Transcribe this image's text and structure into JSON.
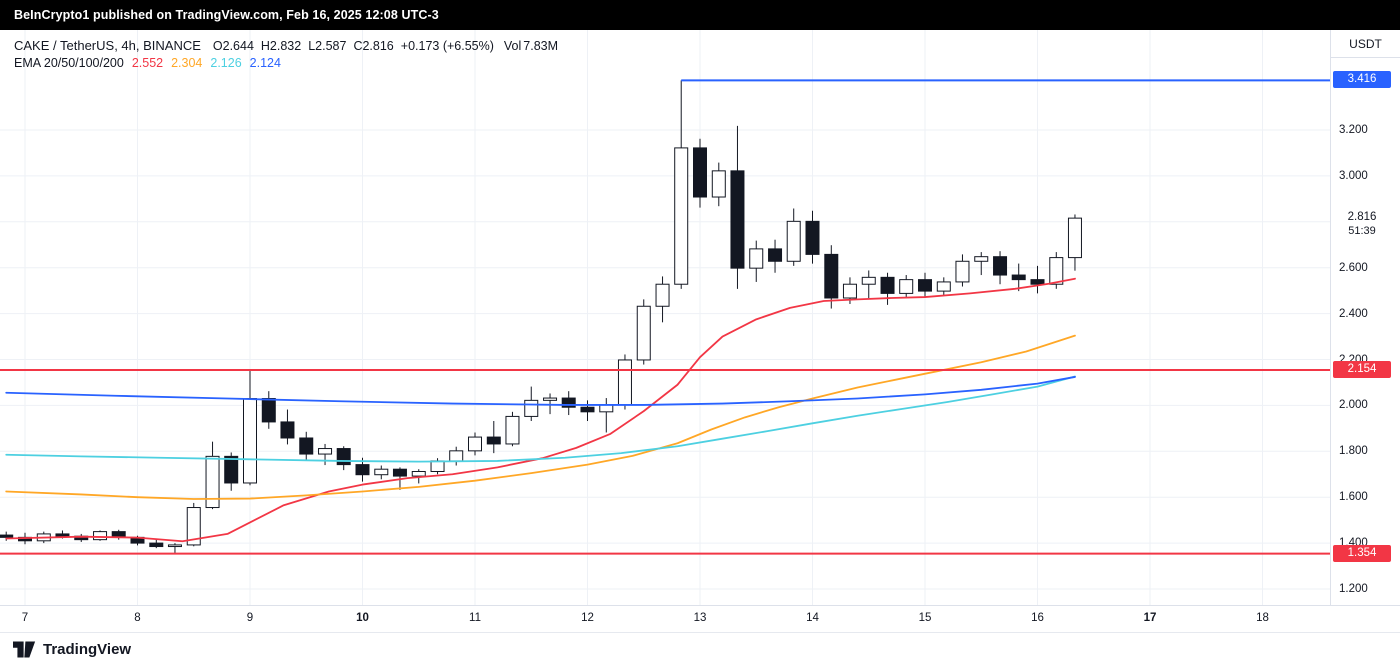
{
  "top_bar": {
    "attribution": "BeInCrypto1 published on TradingView.com, Feb 16, 2025 12:08 UTC-3"
  },
  "header": {
    "symbol": "CAKE / TetherUS, 4h, BINANCE",
    "ohlc": [
      "O2.644",
      "H2.832",
      "L2.587",
      "C2.816"
    ],
    "change": "+0.173 (+6.55%)",
    "volume_label": "Vol",
    "volume": "7.83M",
    "indicator": {
      "name": "EMA 20/50/100/200",
      "values": [
        {
          "text": "2.552",
          "color": "#f23645"
        },
        {
          "text": "2.304",
          "color": "#ffa726"
        },
        {
          "text": "2.126",
          "color": "#4dd0e1"
        },
        {
          "text": "2.124",
          "color": "#2962ff"
        }
      ]
    }
  },
  "price_axis": {
    "currency": "USDT",
    "tick_labels": [
      "3.200",
      "3.000",
      "2.600",
      "2.400",
      "2.200",
      "2.000",
      "1.800",
      "1.600",
      "1.400",
      "1.200"
    ],
    "last_price": {
      "display": "2.816",
      "value": 2.816,
      "countdown": "51:39"
    },
    "level_badges": [
      {
        "display": "3.416",
        "value": 3.416,
        "color": "#2962ff"
      },
      {
        "display": "2.154",
        "value": 2.154,
        "color": "#f23645"
      },
      {
        "display": "1.354",
        "value": 1.354,
        "color": "#f23645"
      }
    ]
  },
  "time_axis": {
    "labels": [
      {
        "text": "7",
        "t": 7,
        "bold": false
      },
      {
        "text": "8",
        "t": 8,
        "bold": false
      },
      {
        "text": "9",
        "t": 9,
        "bold": false
      },
      {
        "text": "10",
        "t": 10,
        "bold": true
      },
      {
        "text": "11",
        "t": 11,
        "bold": false
      },
      {
        "text": "12",
        "t": 12,
        "bold": false
      },
      {
        "text": "13",
        "t": 13,
        "bold": false
      },
      {
        "text": "14",
        "t": 14,
        "bold": false
      },
      {
        "text": "15",
        "t": 15,
        "bold": false
      },
      {
        "text": "16",
        "t": 16,
        "bold": false
      },
      {
        "text": "17",
        "t": 17,
        "bold": true
      },
      {
        "text": "18",
        "t": 18,
        "bold": false
      }
    ]
  },
  "footer": {
    "brand": "TradingView"
  },
  "colors": {
    "grid": "#eef1f6",
    "candle_up": "#ffffff",
    "candle_down": "#131722",
    "candle_border": "#131722",
    "axis_text": "#131722",
    "level_red": "#f23645",
    "level_blue": "#2962ff"
  },
  "chart_data": {
    "type": "candlestick",
    "title": "CAKE / TetherUS, 4h, BINANCE",
    "ylabel": "USDT",
    "y_ticks": [
      1.2,
      1.4,
      1.6,
      1.8,
      2.0,
      2.2,
      2.4,
      2.6,
      2.8,
      3.0,
      3.2
    ],
    "x_ticks_days": [
      7,
      8,
      9,
      10,
      11,
      12,
      13,
      14,
      15,
      16,
      17,
      18
    ],
    "grid": true,
    "last_price": 2.816,
    "candles_tohlc": [
      [
        6.833,
        1.435,
        1.45,
        1.41,
        1.425
      ],
      [
        7.0,
        1.425,
        1.445,
        1.395,
        1.41
      ],
      [
        7.167,
        1.41,
        1.45,
        1.4,
        1.44
      ],
      [
        7.333,
        1.44,
        1.455,
        1.42,
        1.43
      ],
      [
        7.5,
        1.43,
        1.44,
        1.405,
        1.415
      ],
      [
        7.667,
        1.415,
        1.455,
        1.41,
        1.45
      ],
      [
        7.833,
        1.45,
        1.458,
        1.415,
        1.425
      ],
      [
        8.0,
        1.425,
        1.432,
        1.39,
        1.4
      ],
      [
        8.167,
        1.4,
        1.415,
        1.378,
        1.385
      ],
      [
        8.333,
        1.385,
        1.4,
        1.354,
        1.392
      ],
      [
        8.5,
        1.392,
        1.575,
        1.386,
        1.555
      ],
      [
        8.667,
        1.555,
        1.842,
        1.548,
        1.778
      ],
      [
        8.833,
        1.778,
        1.795,
        1.628,
        1.662
      ],
      [
        9.0,
        1.662,
        2.154,
        1.652,
        2.03
      ],
      [
        9.167,
        2.03,
        2.062,
        1.898,
        1.928
      ],
      [
        9.333,
        1.928,
        1.982,
        1.83,
        1.858
      ],
      [
        9.5,
        1.858,
        1.885,
        1.758,
        1.788
      ],
      [
        9.667,
        1.788,
        1.832,
        1.74,
        1.812
      ],
      [
        9.833,
        1.812,
        1.822,
        1.718,
        1.742
      ],
      [
        10.0,
        1.742,
        1.772,
        1.668,
        1.698
      ],
      [
        10.167,
        1.698,
        1.738,
        1.678,
        1.722
      ],
      [
        10.333,
        1.722,
        1.73,
        1.632,
        1.692
      ],
      [
        10.5,
        1.692,
        1.722,
        1.66,
        1.712
      ],
      [
        10.667,
        1.712,
        1.77,
        1.7,
        1.758
      ],
      [
        10.833,
        1.758,
        1.82,
        1.738,
        1.802
      ],
      [
        11.0,
        1.802,
        1.882,
        1.782,
        1.862
      ],
      [
        11.167,
        1.862,
        1.932,
        1.792,
        1.832
      ],
      [
        11.333,
        1.832,
        1.972,
        1.822,
        1.952
      ],
      [
        11.5,
        1.952,
        2.082,
        1.932,
        2.022
      ],
      [
        11.667,
        2.022,
        2.052,
        1.962,
        2.032
      ],
      [
        11.833,
        2.032,
        2.062,
        1.958,
        1.992
      ],
      [
        12.0,
        1.992,
        2.022,
        1.932,
        1.972
      ],
      [
        12.167,
        1.972,
        2.032,
        1.882,
        2.002
      ],
      [
        12.333,
        2.002,
        2.222,
        1.982,
        2.198
      ],
      [
        12.5,
        2.198,
        2.462,
        2.178,
        2.432
      ],
      [
        12.667,
        2.432,
        2.562,
        2.362,
        2.528
      ],
      [
        12.833,
        2.528,
        3.416,
        2.508,
        3.122
      ],
      [
        13.0,
        3.122,
        3.162,
        2.862,
        2.908
      ],
      [
        13.167,
        2.908,
        3.058,
        2.868,
        3.022
      ],
      [
        13.333,
        3.022,
        3.218,
        2.508,
        2.598
      ],
      [
        13.5,
        2.598,
        2.718,
        2.538,
        2.682
      ],
      [
        13.667,
        2.682,
        2.722,
        2.578,
        2.628
      ],
      [
        13.833,
        2.628,
        2.858,
        2.608,
        2.802
      ],
      [
        14.0,
        2.802,
        2.848,
        2.618,
        2.658
      ],
      [
        14.167,
        2.658,
        2.698,
        2.422,
        2.468
      ],
      [
        14.333,
        2.468,
        2.558,
        2.442,
        2.528
      ],
      [
        14.5,
        2.528,
        2.588,
        2.468,
        2.558
      ],
      [
        14.667,
        2.558,
        2.578,
        2.438,
        2.488
      ],
      [
        14.833,
        2.488,
        2.568,
        2.468,
        2.548
      ],
      [
        15.0,
        2.548,
        2.578,
        2.468,
        2.498
      ],
      [
        15.167,
        2.498,
        2.558,
        2.478,
        2.538
      ],
      [
        15.333,
        2.538,
        2.658,
        2.518,
        2.628
      ],
      [
        15.5,
        2.628,
        2.668,
        2.568,
        2.648
      ],
      [
        15.667,
        2.648,
        2.672,
        2.528,
        2.568
      ],
      [
        15.833,
        2.568,
        2.618,
        2.498,
        2.548
      ],
      [
        16.0,
        2.548,
        2.608,
        2.488,
        2.528
      ],
      [
        16.167,
        2.528,
        2.668,
        2.508,
        2.644
      ],
      [
        16.333,
        2.644,
        2.832,
        2.587,
        2.816
      ]
    ],
    "emas": [
      {
        "name": "EMA 20",
        "color": "#f23645",
        "current": 2.552,
        "points": [
          [
            6.833,
            1.42
          ],
          [
            7.5,
            1.428
          ],
          [
            8.0,
            1.424
          ],
          [
            8.4,
            1.408
          ],
          [
            8.8,
            1.44
          ],
          [
            9.0,
            1.49
          ],
          [
            9.3,
            1.565
          ],
          [
            9.7,
            1.625
          ],
          [
            10.0,
            1.655
          ],
          [
            10.4,
            1.683
          ],
          [
            10.8,
            1.7
          ],
          [
            11.2,
            1.73
          ],
          [
            11.6,
            1.77
          ],
          [
            11.9,
            1.815
          ],
          [
            12.2,
            1.875
          ],
          [
            12.5,
            1.975
          ],
          [
            12.8,
            2.09
          ],
          [
            13.0,
            2.21
          ],
          [
            13.2,
            2.3
          ],
          [
            13.5,
            2.375
          ],
          [
            13.8,
            2.425
          ],
          [
            14.1,
            2.455
          ],
          [
            14.4,
            2.462
          ],
          [
            14.7,
            2.468
          ],
          [
            15.0,
            2.472
          ],
          [
            15.4,
            2.488
          ],
          [
            15.8,
            2.508
          ],
          [
            16.1,
            2.53
          ],
          [
            16.333,
            2.552
          ]
        ]
      },
      {
        "name": "EMA 50",
        "color": "#ffa726",
        "current": 2.304,
        "points": [
          [
            6.833,
            1.625
          ],
          [
            7.5,
            1.612
          ],
          [
            8.0,
            1.6
          ],
          [
            8.5,
            1.592
          ],
          [
            9.0,
            1.594
          ],
          [
            9.5,
            1.608
          ],
          [
            10.0,
            1.625
          ],
          [
            10.5,
            1.645
          ],
          [
            11.0,
            1.672
          ],
          [
            11.5,
            1.705
          ],
          [
            12.0,
            1.742
          ],
          [
            12.4,
            1.78
          ],
          [
            12.8,
            1.835
          ],
          [
            13.1,
            1.895
          ],
          [
            13.4,
            1.948
          ],
          [
            13.7,
            1.992
          ],
          [
            14.0,
            2.03
          ],
          [
            14.4,
            2.078
          ],
          [
            14.8,
            2.118
          ],
          [
            15.1,
            2.148
          ],
          [
            15.5,
            2.188
          ],
          [
            15.9,
            2.235
          ],
          [
            16.333,
            2.304
          ]
        ]
      },
      {
        "name": "EMA 100",
        "color": "#4dd0e1",
        "current": 2.126,
        "points": [
          [
            6.833,
            1.785
          ],
          [
            7.5,
            1.778
          ],
          [
            8.2,
            1.772
          ],
          [
            9.0,
            1.765
          ],
          [
            9.8,
            1.758
          ],
          [
            10.5,
            1.755
          ],
          [
            11.2,
            1.758
          ],
          [
            11.8,
            1.772
          ],
          [
            12.3,
            1.792
          ],
          [
            12.8,
            1.822
          ],
          [
            13.2,
            1.855
          ],
          [
            13.6,
            1.888
          ],
          [
            14.0,
            1.922
          ],
          [
            14.4,
            1.955
          ],
          [
            14.8,
            1.985
          ],
          [
            15.2,
            2.015
          ],
          [
            15.6,
            2.048
          ],
          [
            16.0,
            2.082
          ],
          [
            16.333,
            2.126
          ]
        ]
      },
      {
        "name": "EMA 200",
        "color": "#2962ff",
        "current": 2.124,
        "points": [
          [
            6.833,
            2.055
          ],
          [
            7.8,
            2.042
          ],
          [
            8.8,
            2.03
          ],
          [
            9.8,
            2.018
          ],
          [
            10.8,
            2.008
          ],
          [
            11.8,
            2.002
          ],
          [
            12.5,
            2.002
          ],
          [
            13.2,
            2.008
          ],
          [
            13.8,
            2.018
          ],
          [
            14.4,
            2.03
          ],
          [
            15.0,
            2.048
          ],
          [
            15.5,
            2.068
          ],
          [
            16.0,
            2.095
          ],
          [
            16.333,
            2.124
          ]
        ]
      }
    ],
    "levels": [
      {
        "price": 3.416,
        "color": "#2962ff",
        "from_t": 12.833
      },
      {
        "price": 2.154,
        "color": "#f23645",
        "from_t": null
      },
      {
        "price": 1.354,
        "color": "#f23645",
        "from_t": null
      }
    ]
  }
}
